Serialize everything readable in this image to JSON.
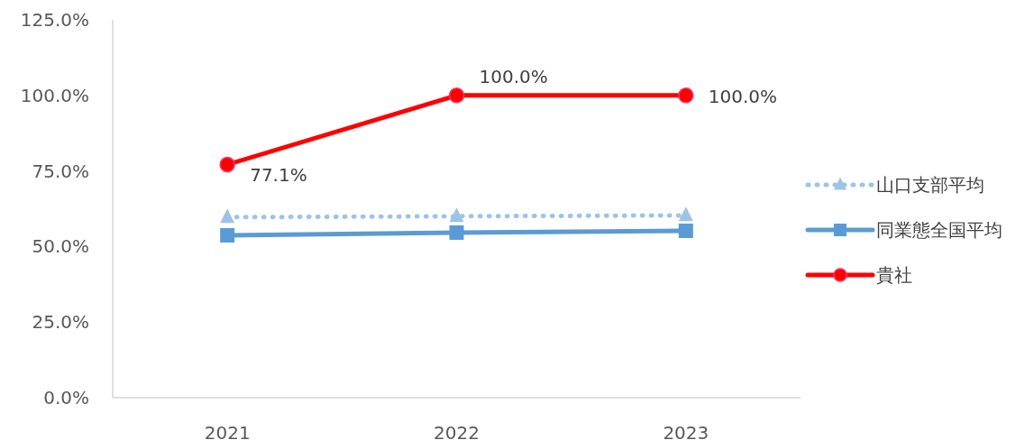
{
  "chart_data": {
    "type": "line",
    "categories": [
      "2021",
      "2022",
      "2023"
    ],
    "ylim": [
      0,
      125
    ],
    "yticks": [
      {
        "value": 0,
        "label": "0.0%"
      },
      {
        "value": 25,
        "label": "25.0%"
      },
      {
        "value": 50,
        "label": "50.0%"
      },
      {
        "value": 75,
        "label": "75.0%"
      },
      {
        "value": 100,
        "label": "100.0%"
      },
      {
        "value": 125,
        "label": "125.0%"
      }
    ],
    "grid": false,
    "legend": "right",
    "series": [
      {
        "name": "山口支部平均",
        "color": "#9dc3e6",
        "values": [
          59.7,
          60.0,
          60.3
        ],
        "marker": "triangle",
        "line_style": "dotted"
      },
      {
        "name": "同業態全国平均",
        "color": "#5b9bd5",
        "values": [
          53.7,
          54.6,
          55.2
        ],
        "marker": "square",
        "line_style": "solid"
      },
      {
        "name": "貴社",
        "color": "#ff0000",
        "values": [
          77.1,
          100.0,
          100.0
        ],
        "marker": "circle",
        "line_style": "solid",
        "value_labels": [
          "77.1%",
          "100.0%",
          "100.0%"
        ]
      }
    ]
  }
}
